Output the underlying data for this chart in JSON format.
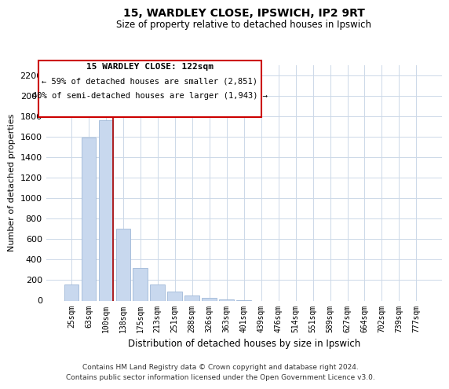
{
  "title": "15, WARDLEY CLOSE, IPSWICH, IP2 9RT",
  "subtitle": "Size of property relative to detached houses in Ipswich",
  "xlabel": "Distribution of detached houses by size in Ipswich",
  "ylabel": "Number of detached properties",
  "bar_color": "#c8d8ee",
  "bar_edge_color": "#a0b8d8",
  "marker_color": "#aa0000",
  "categories": [
    "25sqm",
    "63sqm",
    "100sqm",
    "138sqm",
    "175sqm",
    "213sqm",
    "251sqm",
    "288sqm",
    "326sqm",
    "363sqm",
    "401sqm",
    "439sqm",
    "476sqm",
    "514sqm",
    "551sqm",
    "589sqm",
    "627sqm",
    "664sqm",
    "702sqm",
    "739sqm",
    "777sqm"
  ],
  "values": [
    160,
    1590,
    1760,
    700,
    315,
    155,
    85,
    50,
    25,
    10,
    5,
    0,
    0,
    0,
    0,
    0,
    0,
    0,
    0,
    0,
    0
  ],
  "marker_index": 2,
  "annotation_title": "15 WARDLEY CLOSE: 122sqm",
  "annotation_line1": "← 59% of detached houses are smaller (2,851)",
  "annotation_line2": "40% of semi-detached houses are larger (1,943) →",
  "footer1": "Contains HM Land Registry data © Crown copyright and database right 2024.",
  "footer2": "Contains public sector information licensed under the Open Government Licence v3.0.",
  "ylim": [
    0,
    2300
  ],
  "yticks": [
    0,
    200,
    400,
    600,
    800,
    1000,
    1200,
    1400,
    1600,
    1800,
    2000,
    2200
  ],
  "bg_color": "#ffffff",
  "grid_color": "#ccd8e8",
  "annotation_box_color": "#ffffff",
  "annotation_box_edge": "#cc0000"
}
